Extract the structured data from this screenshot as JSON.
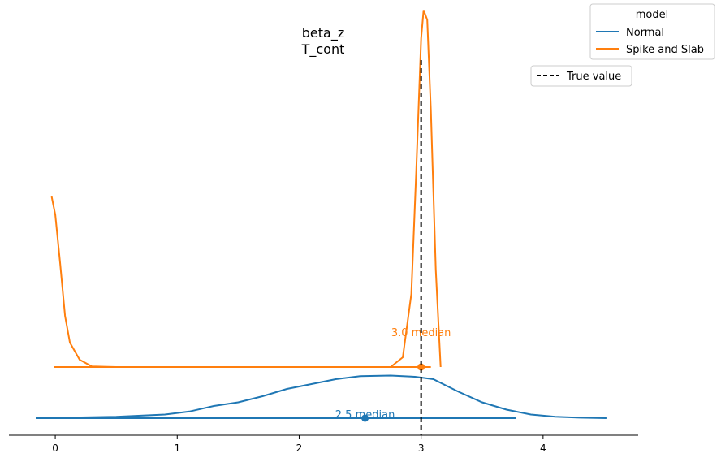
{
  "chart_data": {
    "type": "line",
    "title_lines": [
      "beta_z",
      "T_cont"
    ],
    "xlabel": "",
    "ylabel": "",
    "xlim": [
      -0.38,
      4.78
    ],
    "x_ticks": [
      0,
      1,
      2,
      3,
      4
    ],
    "grid": false,
    "legend": {
      "title": "model",
      "placement": "top-right",
      "entries": [
        {
          "name": "Normal",
          "color": "#1f77b4"
        },
        {
          "name": "Spike and Slab",
          "color": "#ff7f0e"
        }
      ]
    },
    "reference": {
      "name": "True value",
      "x": 3.0,
      "style": "dashed",
      "color": "#000000",
      "legend_placement": "upper-right"
    },
    "series": [
      {
        "name": "Normal",
        "color": "#1f77b4",
        "baseline_level": 0.0,
        "median": 2.54,
        "median_label": "2.5 median",
        "interval": [
          -0.16,
          3.78
        ],
        "density": [
          [
            -0.16,
            0.0
          ],
          [
            0.5,
            0.012
          ],
          [
            0.9,
            0.03
          ],
          [
            1.1,
            0.055
          ],
          [
            1.3,
            0.1
          ],
          [
            1.5,
            0.13
          ],
          [
            1.7,
            0.18
          ],
          [
            1.9,
            0.24
          ],
          [
            2.1,
            0.28
          ],
          [
            2.3,
            0.32
          ],
          [
            2.5,
            0.345
          ],
          [
            2.75,
            0.35
          ],
          [
            2.95,
            0.34
          ],
          [
            3.1,
            0.32
          ],
          [
            3.3,
            0.22
          ],
          [
            3.5,
            0.13
          ],
          [
            3.7,
            0.07
          ],
          [
            3.9,
            0.03
          ],
          [
            4.1,
            0.012
          ],
          [
            4.3,
            0.004
          ],
          [
            4.52,
            0.0
          ]
        ]
      },
      {
        "name": "Spike and Slab",
        "color": "#ff7f0e",
        "baseline_level": 0.42,
        "median": 3.0,
        "median_label": "3.0 median",
        "interval": [
          -0.01,
          3.08
        ],
        "density": [
          [
            -0.03,
            1.4
          ],
          [
            0.0,
            1.25
          ],
          [
            0.04,
            0.85
          ],
          [
            0.08,
            0.42
          ],
          [
            0.12,
            0.2
          ],
          [
            0.2,
            0.06
          ],
          [
            0.3,
            0.005
          ],
          [
            0.5,
            0.0
          ],
          [
            1.22,
            0.0
          ],
          [
            2.75,
            0.0
          ],
          [
            2.85,
            0.08
          ],
          [
            2.92,
            0.6
          ],
          [
            2.96,
            1.6
          ],
          [
            3.0,
            2.7
          ],
          [
            3.02,
            2.93
          ],
          [
            3.05,
            2.85
          ],
          [
            3.08,
            2.1
          ],
          [
            3.12,
            0.8
          ],
          [
            3.16,
            0.0
          ]
        ]
      }
    ]
  }
}
